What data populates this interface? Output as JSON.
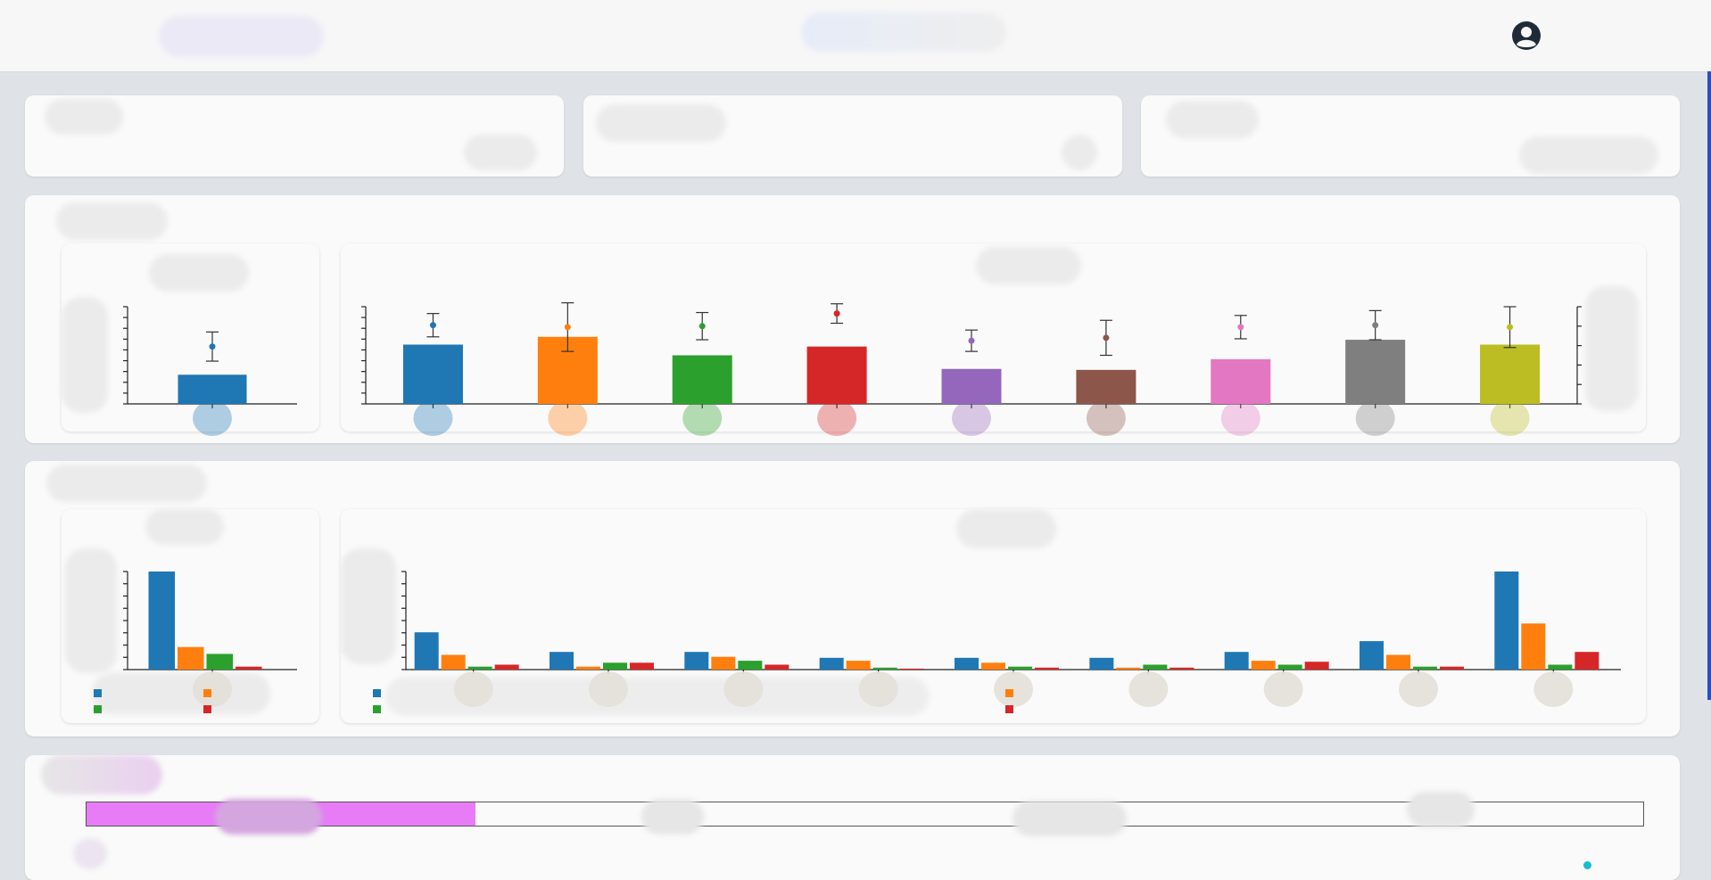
{
  "header": {
    "profile_icon": "user-circle-icon"
  },
  "colors": {
    "series": [
      "#1f77b4",
      "#ff7f0e",
      "#2ca02c",
      "#d62728",
      "#9467bd",
      "#8c564b",
      "#e377c2",
      "#7f7f7f",
      "#bcbd22"
    ],
    "accent": "#2e4bbf",
    "progress": "#e77cf6"
  },
  "progress": {
    "fraction": 0.25
  },
  "chart_data": [
    {
      "type": "bar",
      "error_bars": true,
      "series": [
        {
          "values": [
            3
          ],
          "points": [
            5.9
          ],
          "err": [
            1.5
          ]
        }
      ]
    },
    {
      "type": "bar",
      "error_bars": true,
      "series": [
        {
          "values": [
            6.1,
            6.9,
            5.0,
            5.9,
            3.6,
            3.5,
            4.6,
            6.6,
            6.1
          ],
          "points": [
            8.1,
            7.9,
            8.0,
            9.3,
            6.5,
            6.8,
            7.9,
            8.1,
            7.9
          ],
          "err": [
            1.2,
            2.5,
            1.4,
            1.0,
            1.1,
            1.8,
            1.2,
            1.5,
            2.1
          ]
        }
      ]
    },
    {
      "type": "bar",
      "series": [
        {
          "values": [
            100
          ]
        },
        {
          "values": [
            23
          ]
        },
        {
          "values": [
            16
          ]
        },
        {
          "values": [
            3
          ]
        }
      ]
    },
    {
      "type": "bar",
      "series": [
        {
          "values": [
            38,
            18,
            18,
            12,
            12,
            12,
            18,
            29,
            100
          ]
        },
        {
          "values": [
            15,
            3,
            13,
            9,
            7,
            2,
            9,
            15,
            47
          ]
        },
        {
          "values": [
            3,
            7,
            9,
            2,
            3,
            5,
            5,
            3,
            5
          ]
        },
        {
          "values": [
            5,
            7,
            5,
            1,
            2,
            2,
            8,
            3,
            18
          ]
        }
      ]
    }
  ]
}
